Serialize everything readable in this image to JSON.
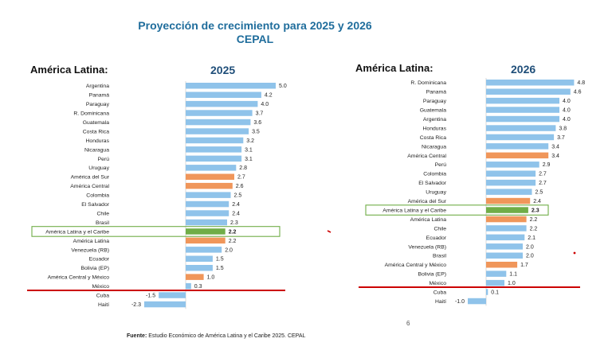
{
  "title_line1": "Proyección de crecimiento para 2025 y 2026",
  "title_line2": "CEPAL",
  "source_label": "Fuente:",
  "source_text": "Estudio Económico de América Latina y el Caribe 2025. CEPAL",
  "page_number": "6",
  "colors": {
    "country": "#8fc3ea",
    "subregion": "#f0965a",
    "region_total": "#70ad47",
    "box": "#70ad47",
    "cutline": "#cc0000"
  },
  "chart_data": [
    {
      "type": "bar",
      "orientation": "horizontal",
      "panel_label": "América Latina:",
      "title": "2025",
      "xlim": [
        -2.3,
        5.0
      ],
      "highlight": "América Latina y el Caribe",
      "cut_after": "México",
      "categories": [
        "Argentina",
        "Panamá",
        "Paraguay",
        "R. Dominicana",
        "Guatemala",
        "Costa Rica",
        "Honduras",
        "Nicaragua",
        "Perú",
        "Uruguay",
        "América del Sur",
        "América Central",
        "Colombia",
        "El Salvador",
        "Chile",
        "Brasil",
        "América Latina y el Caribe",
        "América Latina",
        "Venezuela (RB)",
        "Ecuador",
        "Bolivia (EP)",
        "América Central y México",
        "México",
        "Cuba",
        "Haití"
      ],
      "values": [
        5.0,
        4.2,
        4.0,
        3.7,
        3.6,
        3.5,
        3.2,
        3.1,
        3.1,
        2.8,
        2.7,
        2.6,
        2.5,
        2.4,
        2.4,
        2.3,
        2.2,
        2.2,
        2.0,
        1.5,
        1.5,
        1.0,
        0.3,
        -1.5,
        -2.3
      ],
      "value_labels": [
        "5.0",
        "4.2",
        "4.0",
        "3.7",
        "3.6",
        "3.5",
        "3.2",
        "3.1",
        "3.1",
        "2.8",
        "2.7",
        "2.6",
        "2.5",
        "2.4",
        "2.4",
        "2.3",
        "2.2",
        "2.2",
        "2.0",
        "1.5",
        "1.5",
        "1.0",
        "0.3",
        "-1.5",
        "-2.3"
      ],
      "kinds": [
        "c",
        "c",
        "c",
        "c",
        "c",
        "c",
        "c",
        "c",
        "c",
        "c",
        "s",
        "s",
        "c",
        "c",
        "c",
        "c",
        "t",
        "s",
        "c",
        "c",
        "c",
        "s",
        "c",
        "c",
        "c"
      ]
    },
    {
      "type": "bar",
      "orientation": "horizontal",
      "panel_label": "América Latina:",
      "title": "2026",
      "xlim": [
        -1.0,
        4.8
      ],
      "highlight": "América Latina y el Caribe",
      "cut_after": "México",
      "categories": [
        "R. Dominicana",
        "Panamá",
        "Paraguay",
        "Guatemala",
        "Argentina",
        "Honduras",
        "Costa Rica",
        "Nicaragua",
        "América Central",
        "Perú",
        "Colombia",
        "El Salvador",
        "Uruguay",
        "América del Sur",
        "América Latina y el Caribe",
        "América Latina",
        "Chile",
        "Ecuador",
        "Venezuela (RB)",
        "Brasil",
        "América Central y México",
        "Bolivia (EP)",
        "México",
        "Cuba",
        "Haití"
      ],
      "values": [
        4.8,
        4.6,
        4.0,
        4.0,
        4.0,
        3.8,
        3.7,
        3.4,
        3.4,
        2.9,
        2.7,
        2.7,
        2.5,
        2.4,
        2.3,
        2.2,
        2.2,
        2.1,
        2.0,
        2.0,
        1.7,
        1.1,
        1.0,
        0.1,
        -1.0
      ],
      "value_labels": [
        "4.8",
        "4.6",
        "4.0",
        "4.0",
        "4.0",
        "3.8",
        "3.7",
        "3.4",
        "3.4",
        "2.9",
        "2.7",
        "2.7",
        "2.5",
        "2.4",
        "2.3",
        "2.2",
        "2.2",
        "2.1",
        "2.0",
        "2.0",
        "1.7",
        "1.1",
        "1.0",
        "0.1",
        "-1.0"
      ],
      "kinds": [
        "c",
        "c",
        "c",
        "c",
        "c",
        "c",
        "c",
        "c",
        "s",
        "c",
        "c",
        "c",
        "c",
        "s",
        "t",
        "s",
        "c",
        "c",
        "c",
        "c",
        "s",
        "c",
        "c",
        "c",
        "c"
      ]
    }
  ]
}
